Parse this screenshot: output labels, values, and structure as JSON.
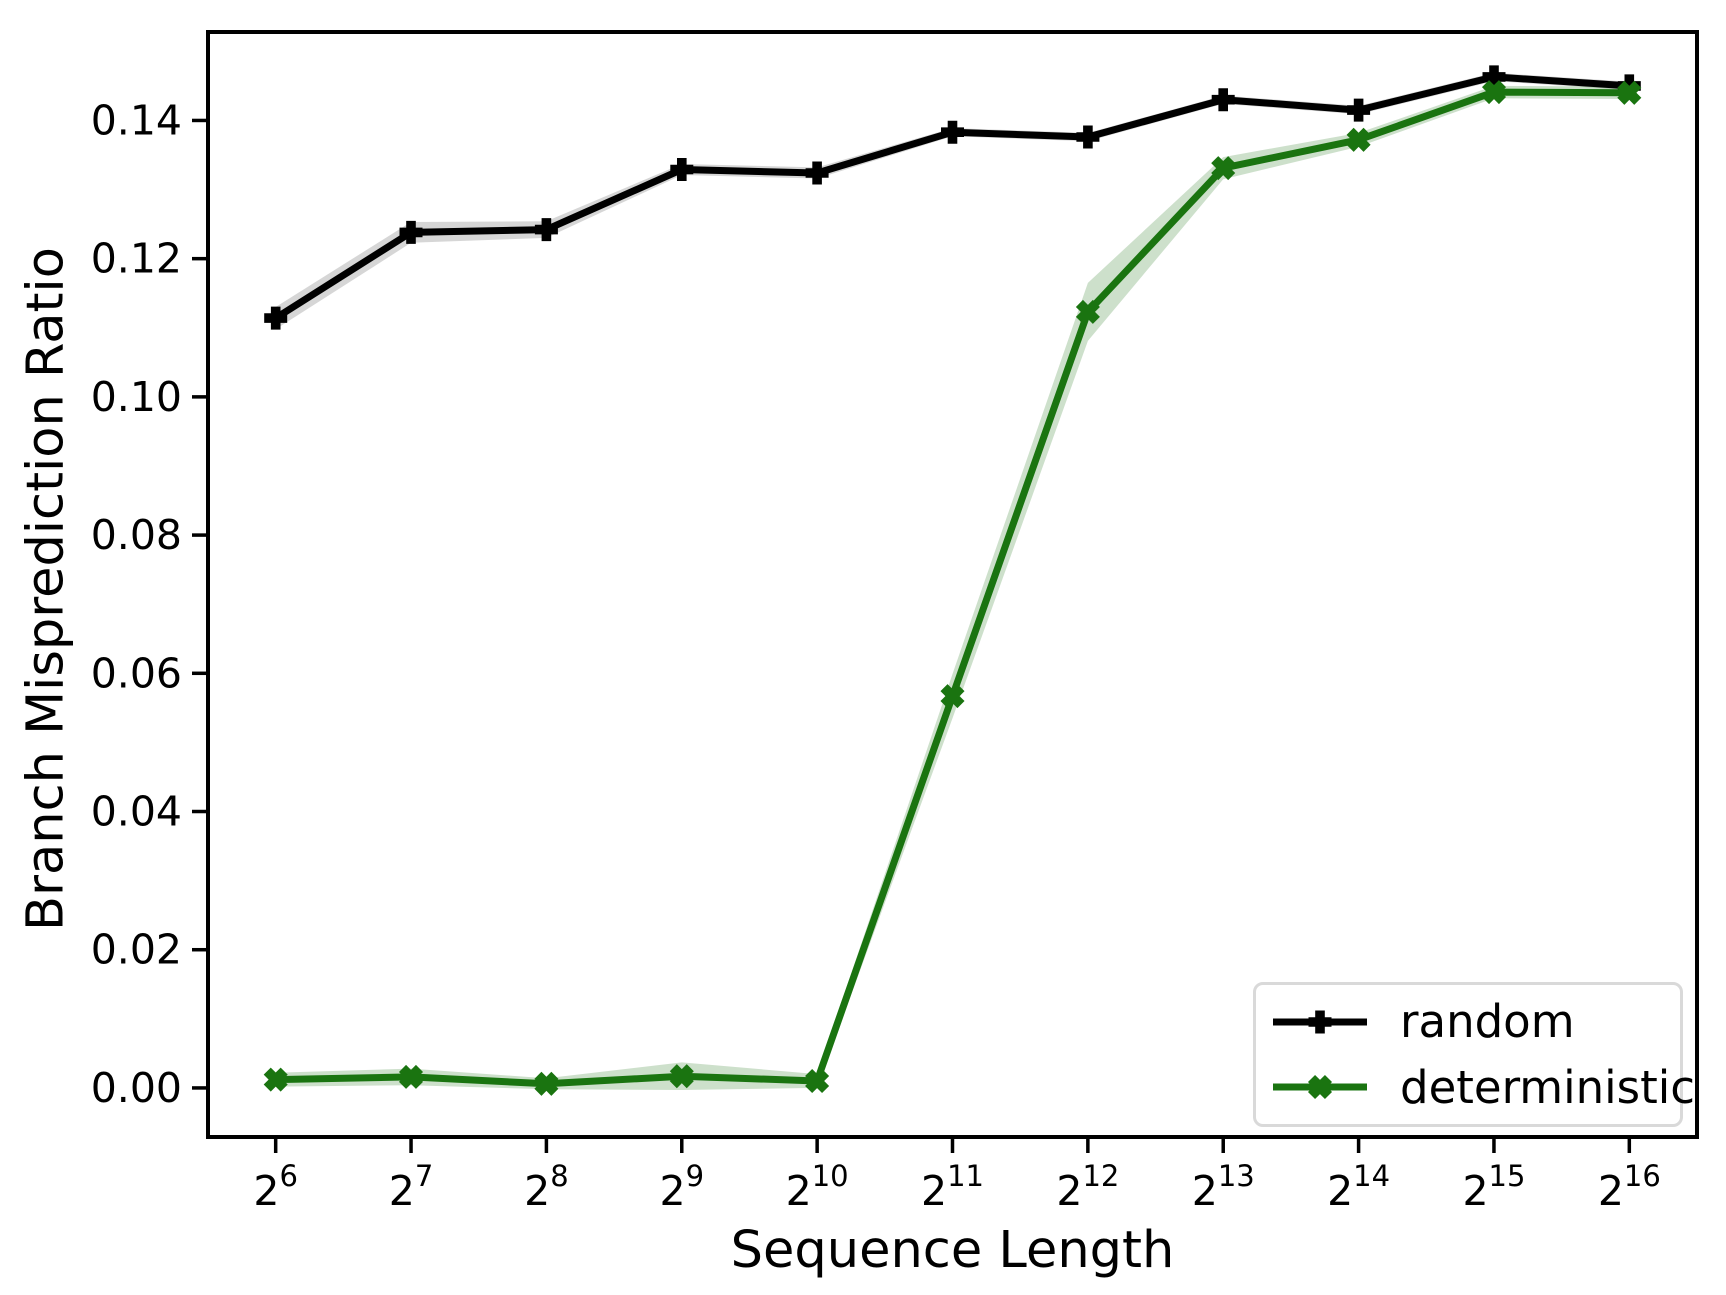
{
  "chart_data": {
    "type": "line",
    "title": "",
    "xlabel": "Sequence Length",
    "ylabel": "Branch Misprediction Ratio",
    "x_tick_base": "2",
    "x_exponents": [
      6,
      7,
      8,
      9,
      10,
      11,
      12,
      13,
      14,
      15,
      16
    ],
    "y_tick_labels": [
      "0.00",
      "0.02",
      "0.04",
      "0.06",
      "0.08",
      "0.10",
      "0.12",
      "0.14"
    ],
    "y_tick_values": [
      0.0,
      0.02,
      0.04,
      0.06,
      0.08,
      0.1,
      0.12,
      0.14
    ],
    "xlim": [
      5.5,
      16.5
    ],
    "ylim": [
      -0.0071,
      0.1528
    ],
    "grid": false,
    "legend_position": "lower right",
    "series": [
      {
        "name": "random",
        "color": "#000000",
        "band_color": "rgba(90,90,90,0.25)",
        "marker": "plus",
        "values": [
          0.1114,
          0.1238,
          0.1242,
          0.1329,
          0.1324,
          0.1383,
          0.1376,
          0.143,
          0.1415,
          0.1463,
          0.145
        ],
        "band": [
          0.0016,
          0.0015,
          0.0012,
          0.0008,
          0.0008,
          0.0006,
          0.0006,
          0.0006,
          0.0006,
          0.0006,
          0.0006
        ]
      },
      {
        "name": "deterministic",
        "color": "#1a7410",
        "band_color": "rgba(26,116,16,0.22)",
        "marker": "x",
        "values": [
          0.0012,
          0.0016,
          0.0006,
          0.0017,
          0.001,
          0.0567,
          0.1123,
          0.1331,
          0.1372,
          0.1441,
          0.144
        ],
        "band": [
          0.001,
          0.0012,
          0.0008,
          0.002,
          0.001,
          0.0032,
          0.0042,
          0.0016,
          0.001,
          0.0009,
          0.0009
        ]
      }
    ]
  }
}
